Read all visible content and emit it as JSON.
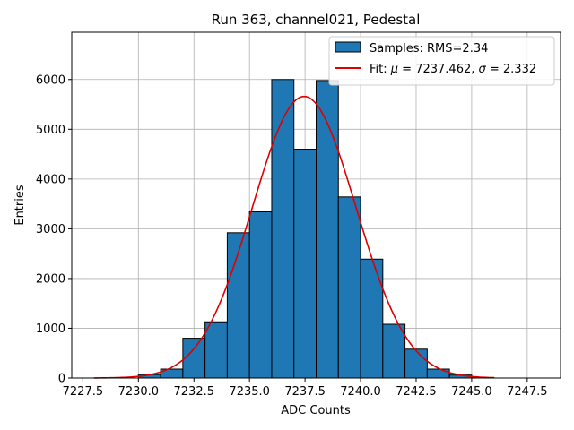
{
  "chart_data": {
    "type": "bar",
    "title": "Run 363, channel021, Pedestal",
    "xlabel": "ADC Counts",
    "ylabel": "Entries",
    "xlim": [
      7227.0,
      7249.0
    ],
    "ylim": [
      0,
      6950
    ],
    "xticks": [
      7227.5,
      7230.0,
      7232.5,
      7235.0,
      7237.5,
      7240.0,
      7242.5,
      7245.0,
      7247.5
    ],
    "xtick_labels": [
      "7227.5",
      "7230.0",
      "7232.5",
      "7235.0",
      "7237.5",
      "7240.0",
      "7242.5",
      "7245.0",
      "7247.5"
    ],
    "yticks": [
      0,
      1000,
      2000,
      3000,
      4000,
      5000,
      6000
    ],
    "ytick_labels": [
      "0",
      "1000",
      "2000",
      "3000",
      "4000",
      "5000",
      "6000"
    ],
    "grid": true,
    "legend_position": "top-right",
    "histogram": {
      "name": "Samples: RMS=2.34",
      "color": "#1f77b4",
      "edgecolor": "#000000",
      "bin_edges": [
        7230,
        7231,
        7232,
        7233,
        7234,
        7235,
        7236,
        7237,
        7238,
        7239,
        7240,
        7241,
        7242,
        7243,
        7244,
        7245,
        7246
      ],
      "counts": [
        70,
        180,
        800,
        1130,
        2920,
        3340,
        6000,
        4600,
        5980,
        3640,
        2390,
        1080,
        580,
        180,
        60,
        10
      ]
    },
    "fit": {
      "name": "Fit: μ = 7237.462, σ = 2.332",
      "legend_prefix": "Fit: ",
      "mu_symbol": "μ",
      "mu_text": " = 7237.462, ",
      "sigma_symbol": "σ",
      "sigma_text": " = 2.332",
      "color": "#e00000",
      "mu": 7237.462,
      "sigma": 2.332,
      "amplitude": 5660,
      "x_range": [
        7228,
        7246
      ]
    }
  }
}
